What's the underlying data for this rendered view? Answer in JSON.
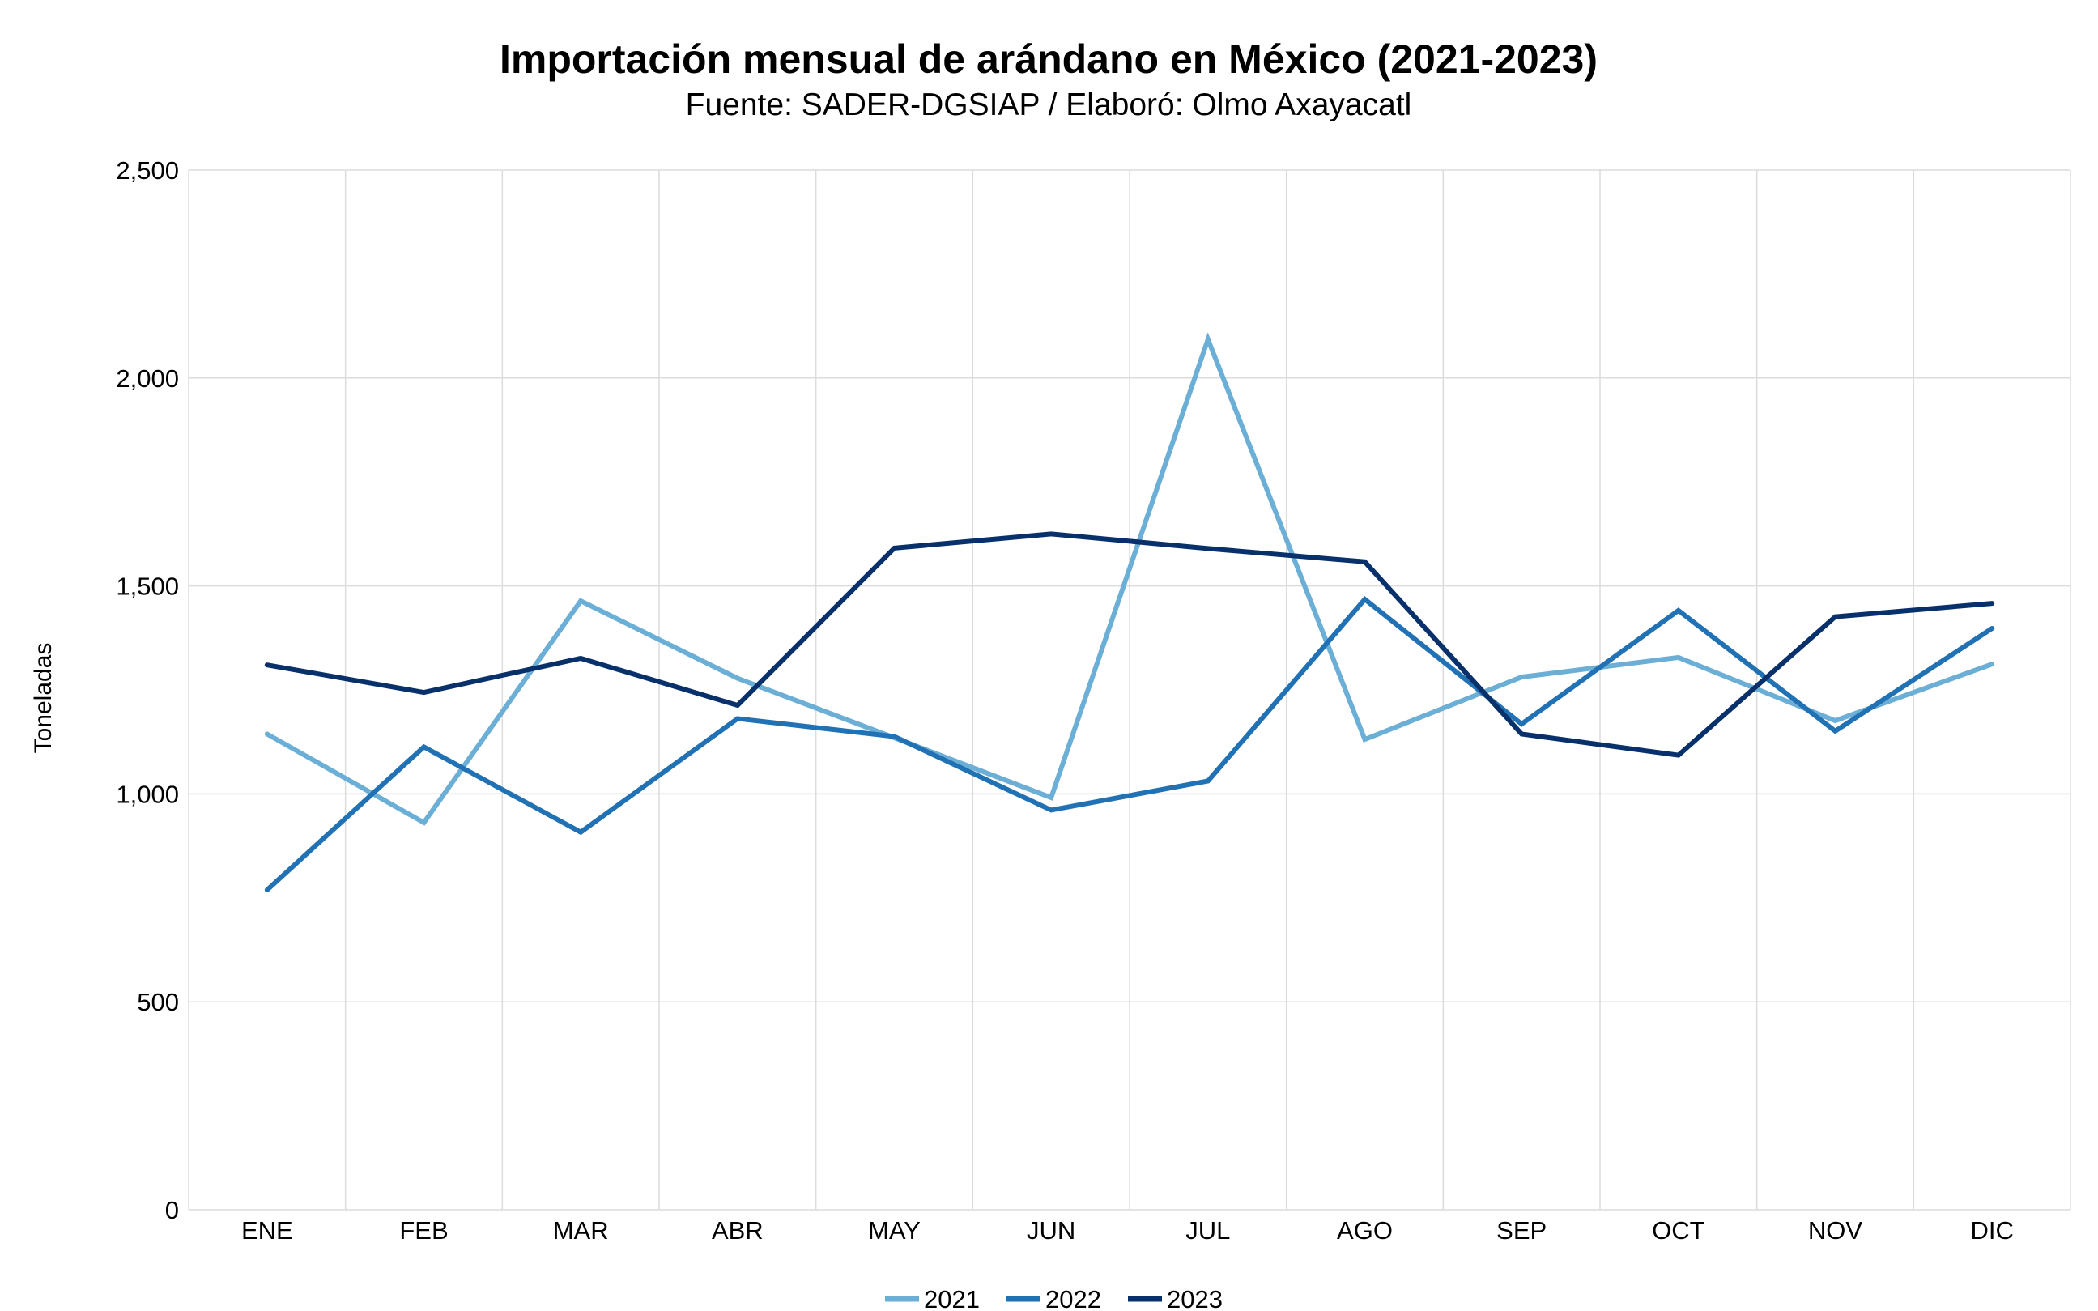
{
  "chart_data": {
    "type": "line",
    "title": "Importación mensual de arándano en México (2021-2023)",
    "subtitle": "Fuente: SADER-DGSIAP / Elaboró: Olmo Axayacatl",
    "xlabel": "",
    "ylabel": "Toneladas",
    "ylim": [
      0,
      2500
    ],
    "yticks": [
      0,
      500,
      1000,
      1500,
      2000,
      2500
    ],
    "ytick_labels": [
      "0",
      "500",
      "1,000",
      "1,500",
      "2,000",
      "2,500"
    ],
    "grid": true,
    "legend_position": "bottom",
    "categories": [
      "ENE",
      "FEB",
      "MAR",
      "ABR",
      "MAY",
      "JUN",
      "JUL",
      "AGO",
      "SEP",
      "OCT",
      "NOV",
      "DIC"
    ],
    "series": [
      {
        "name": "2021",
        "color": "#6baed6",
        "values": [
          1144,
          931,
          1464,
          1278,
          1135,
          991,
          2093,
          1131,
          1281,
          1328,
          1176,
          1312
        ]
      },
      {
        "name": "2022",
        "color": "#2171b5",
        "values": [
          769,
          1113,
          908,
          1181,
          1138,
          961,
          1031,
          1468,
          1168,
          1441,
          1151,
          1398
        ]
      },
      {
        "name": "2023",
        "color": "#08306b",
        "values": [
          1310,
          1244,
          1326,
          1213,
          1591,
          1625,
          1590,
          1558,
          1144,
          1093,
          1426,
          1458
        ]
      }
    ]
  }
}
